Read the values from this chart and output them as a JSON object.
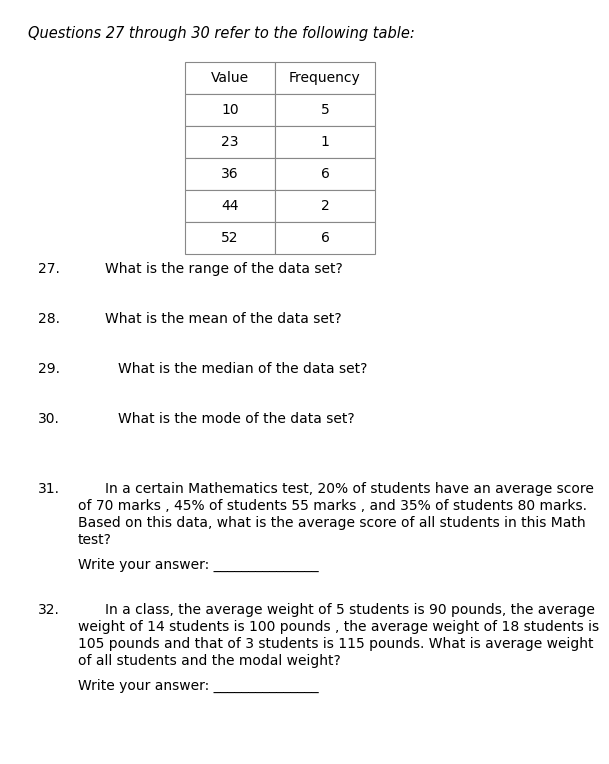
{
  "title": "Questions 27 through 30 refer to the following table:",
  "table_headers": [
    "Value",
    "Frequency"
  ],
  "table_data": [
    [
      "10",
      "5"
    ],
    [
      "23",
      "1"
    ],
    [
      "36",
      "6"
    ],
    [
      "44",
      "2"
    ],
    [
      "52",
      "6"
    ]
  ],
  "questions": [
    {
      "num": "27.",
      "text": "What is the range of the data set?",
      "extra_indent": false
    },
    {
      "num": "28.",
      "text": "What is the mean of the data set?",
      "extra_indent": false
    },
    {
      "num": "29.",
      "text": "What is the median of the data set?",
      "extra_indent": true
    },
    {
      "num": "30.",
      "text": "What is the mode of the data set?",
      "extra_indent": true
    }
  ],
  "q31_num": "31.",
  "q31_first_line": "In a certain Mathematics test, 20% of students have an average score",
  "q31_cont_lines": [
    "of 70 marks , 45% of students 55 marks , and 35% of students 80 marks.",
    "Based on this data, what is the average score of all students in this Math",
    "test?"
  ],
  "q31_answer_label": "Write your answer: _______________",
  "q32_num": "32.",
  "q32_first_line": "In a class, the average weight of 5 students is 90 pounds, the average",
  "q32_cont_lines": [
    "weight of 14 students is 100 pounds , the average weight of 18 students is",
    "105 pounds and that of 3 students is 115 pounds. What is average weight",
    "of all students and the modal weight?"
  ],
  "q32_answer_label": "Write your answer: _______________",
  "bg_color": "#ffffff",
  "text_color": "#000000",
  "title_fontsize": 10.5,
  "body_fontsize": 10,
  "table_cell_color": "#ffffff",
  "table_border_color": "#888888"
}
